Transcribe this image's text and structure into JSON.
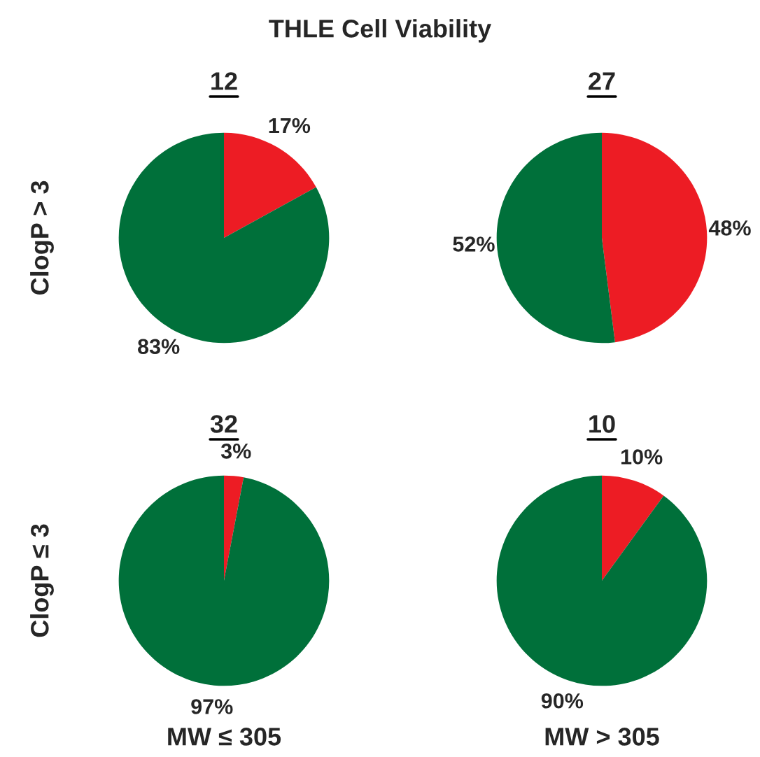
{
  "chart_data": [
    {
      "type": "pie",
      "title": "12",
      "ylabel": "ClogP > 3",
      "annotations": [
        "THLE Cell Viability"
      ],
      "categories": [
        null,
        null
      ],
      "values": [
        17,
        83
      ],
      "colors": [
        "#ed1c24",
        "#00703a"
      ],
      "value_labels": [
        "17%",
        "83%"
      ]
    },
    {
      "type": "pie",
      "title": "27",
      "categories": [
        null,
        null
      ],
      "values": [
        48,
        52
      ],
      "colors": [
        "#ed1c24",
        "#00703a"
      ],
      "value_labels": [
        "48%",
        "52%"
      ]
    },
    {
      "type": "pie",
      "title": "32",
      "ylabel": "ClogP ≤ 3",
      "xlabel": "MW ≤ 305",
      "categories": [
        null,
        null
      ],
      "values": [
        3,
        97
      ],
      "colors": [
        "#ed1c24",
        "#00703a"
      ],
      "value_labels": [
        "3%",
        "97%"
      ]
    },
    {
      "type": "pie",
      "title": "10",
      "xlabel": "MW > 305",
      "categories": [
        null,
        null
      ],
      "values": [
        10,
        90
      ],
      "colors": [
        "#ed1c24",
        "#00703a"
      ],
      "value_labels": [
        "10%",
        "90%"
      ]
    }
  ]
}
